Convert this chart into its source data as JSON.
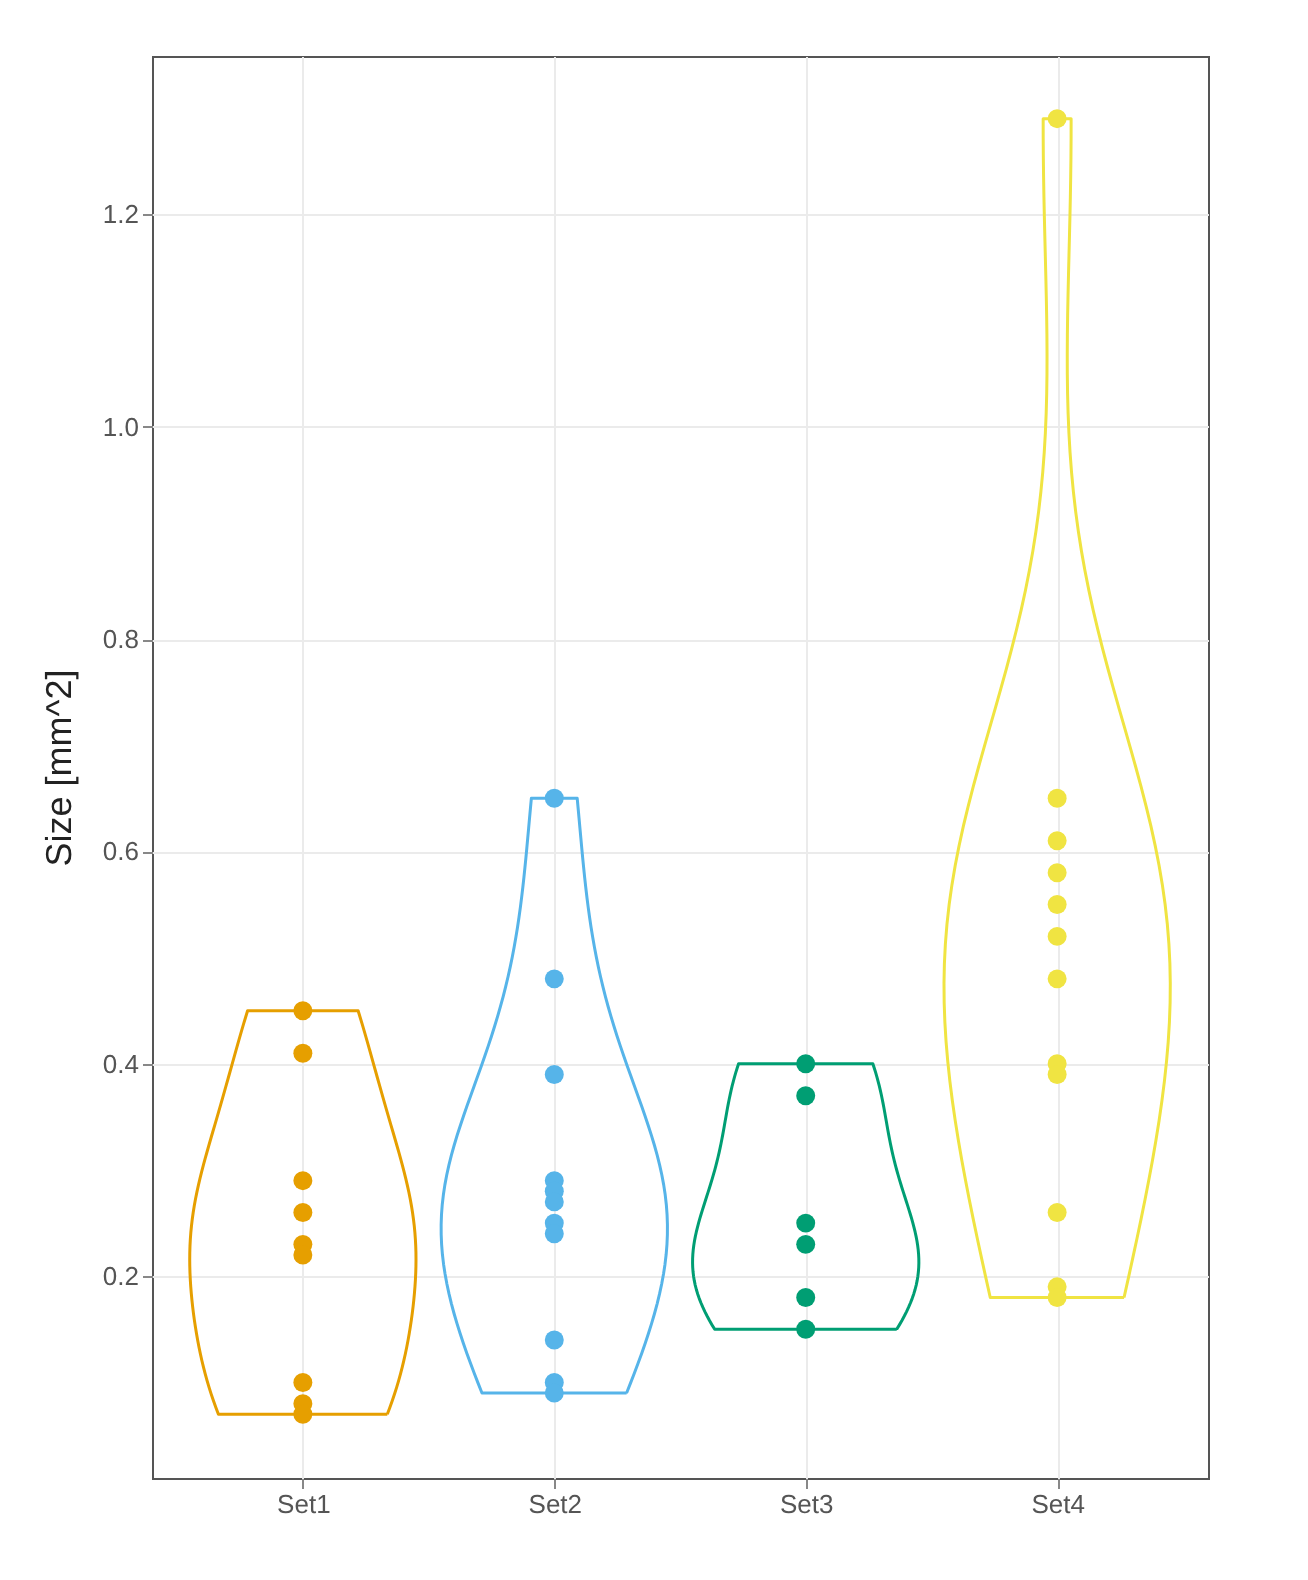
{
  "chart_data": {
    "type": "scatter",
    "ylabel": "Size [mm^2]",
    "categories": [
      "Set1",
      "Set2",
      "Set3",
      "Set4"
    ],
    "ylim": [
      0.01,
      1.349
    ],
    "yticks": [
      0.2,
      0.4,
      0.6,
      0.8,
      {
        "value": 1.0,
        "label": "1.0"
      },
      1.2
    ],
    "grid": true,
    "legend": false,
    "marker": "circle",
    "series": [
      {
        "color": "#e69f00",
        "x": [
          "Set1",
          "Set1",
          "Set1",
          "Set1",
          "Set1",
          "Set1",
          "Set1",
          "Set1",
          "Set1"
        ],
        "values": [
          0.45,
          0.41,
          0.29,
          0.26,
          0.23,
          0.22,
          0.1,
          0.08,
          0.07
        ]
      },
      {
        "color": "#56b4e9",
        "x": [
          "Set2",
          "Set2",
          "Set2",
          "Set2",
          "Set2",
          "Set2",
          "Set2",
          "Set2",
          "Set2",
          "Set2",
          "Set2"
        ],
        "values": [
          0.65,
          0.48,
          0.39,
          0.29,
          0.28,
          0.27,
          0.25,
          0.24,
          0.14,
          0.1,
          0.09
        ]
      },
      {
        "color": "#009e73",
        "x": [
          "Set3",
          "Set3",
          "Set3",
          "Set3",
          "Set3",
          "Set3"
        ],
        "values": [
          0.4,
          0.37,
          0.25,
          0.23,
          0.18,
          0.15
        ]
      },
      {
        "color": "#f0e442",
        "x": [
          "Set4",
          "Set4",
          "Set4",
          "Set4",
          "Set4",
          "Set4",
          "Set4",
          "Set4",
          "Set4",
          "Set4",
          "Set4",
          "Set4"
        ],
        "values": [
          1.29,
          0.65,
          0.61,
          0.58,
          0.55,
          0.52,
          0.48,
          0.4,
          0.39,
          0.26,
          0.19,
          0.18
        ]
      }
    ]
  }
}
